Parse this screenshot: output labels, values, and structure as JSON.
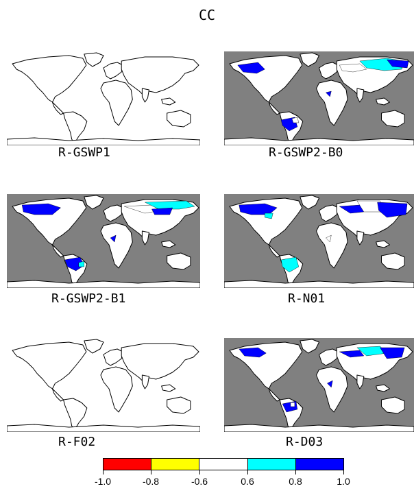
{
  "title": "CC",
  "panels": [
    {
      "label": "R-GSWP1",
      "shaded": false
    },
    {
      "label": "R-GSWP2-B0",
      "shaded": true
    },
    {
      "label": "R-GSWP2-B1",
      "shaded": true
    },
    {
      "label": "R-N01",
      "shaded": true
    },
    {
      "label": "R-F02",
      "shaded": false
    },
    {
      "label": "R-D03",
      "shaded": true
    }
  ],
  "colors": {
    "ocean_shaded": "#808080",
    "land": "#ffffff",
    "coast": "#000000",
    "band_neg_1_0_to_neg_0_8": "#ff0000",
    "band_neg_0_8_to_neg_0_6": "#ffff00",
    "band_neg_0_6_to_0_6": "#ffffff",
    "band_0_6_to_0_8": "#00ffff",
    "band_0_8_to_1_0": "#0000ff"
  },
  "legend": {
    "ticks": [
      "-1.0",
      "-0.8",
      "-0.6",
      "0.6",
      "0.8",
      "1.0"
    ]
  }
}
